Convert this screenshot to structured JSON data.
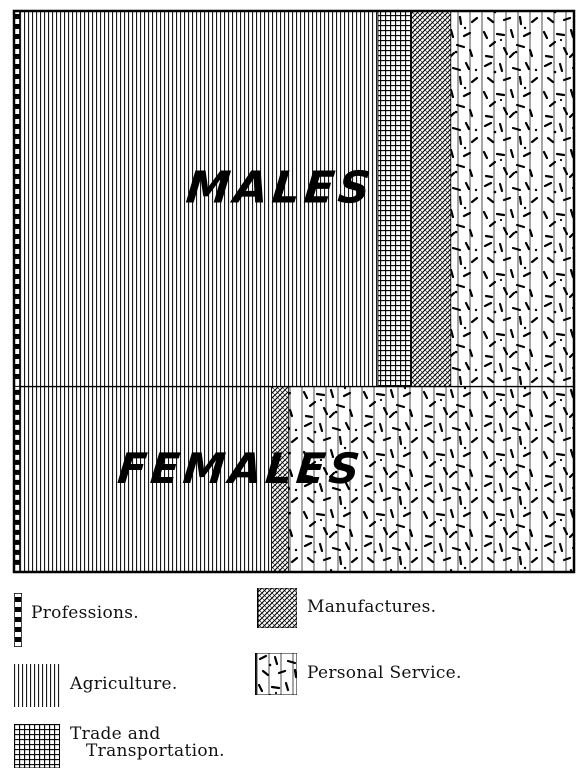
{
  "chart_data": {
    "type": "stacked-bar-100",
    "orientation": "horizontal",
    "categories": [
      "MALES",
      "FEMALES"
    ],
    "series": [
      {
        "name": "Professions.",
        "values": [
          1.0,
          1.0
        ],
        "pattern": "dashed-border"
      },
      {
        "name": "Agriculture.",
        "values": [
          64.0,
          45.0
        ],
        "pattern": "vertical-lines"
      },
      {
        "name": "Trade and Transportation.",
        "values": [
          6.0,
          0.0
        ],
        "pattern": "grid"
      },
      {
        "name": "Manufactures.",
        "values": [
          7.0,
          3.0
        ],
        "pattern": "crosshatch"
      },
      {
        "name": "Personal Service.",
        "values": [
          22.0,
          51.0
        ],
        "pattern": "speckle"
      }
    ],
    "title": "",
    "xlabel": "",
    "ylabel": "",
    "row_shares": [
      67,
      33
    ],
    "grid": false,
    "legend_position": "bottom",
    "colors": {
      "ink": "#000000",
      "paper": "#ffffff"
    }
  },
  "legend": {
    "professions": "Professions.",
    "manufactures": "Manufactures.",
    "agriculture": "Agriculture.",
    "personal_service": "Personal Service.",
    "trade_line1": "Trade and",
    "trade_line2": "Transportation."
  }
}
